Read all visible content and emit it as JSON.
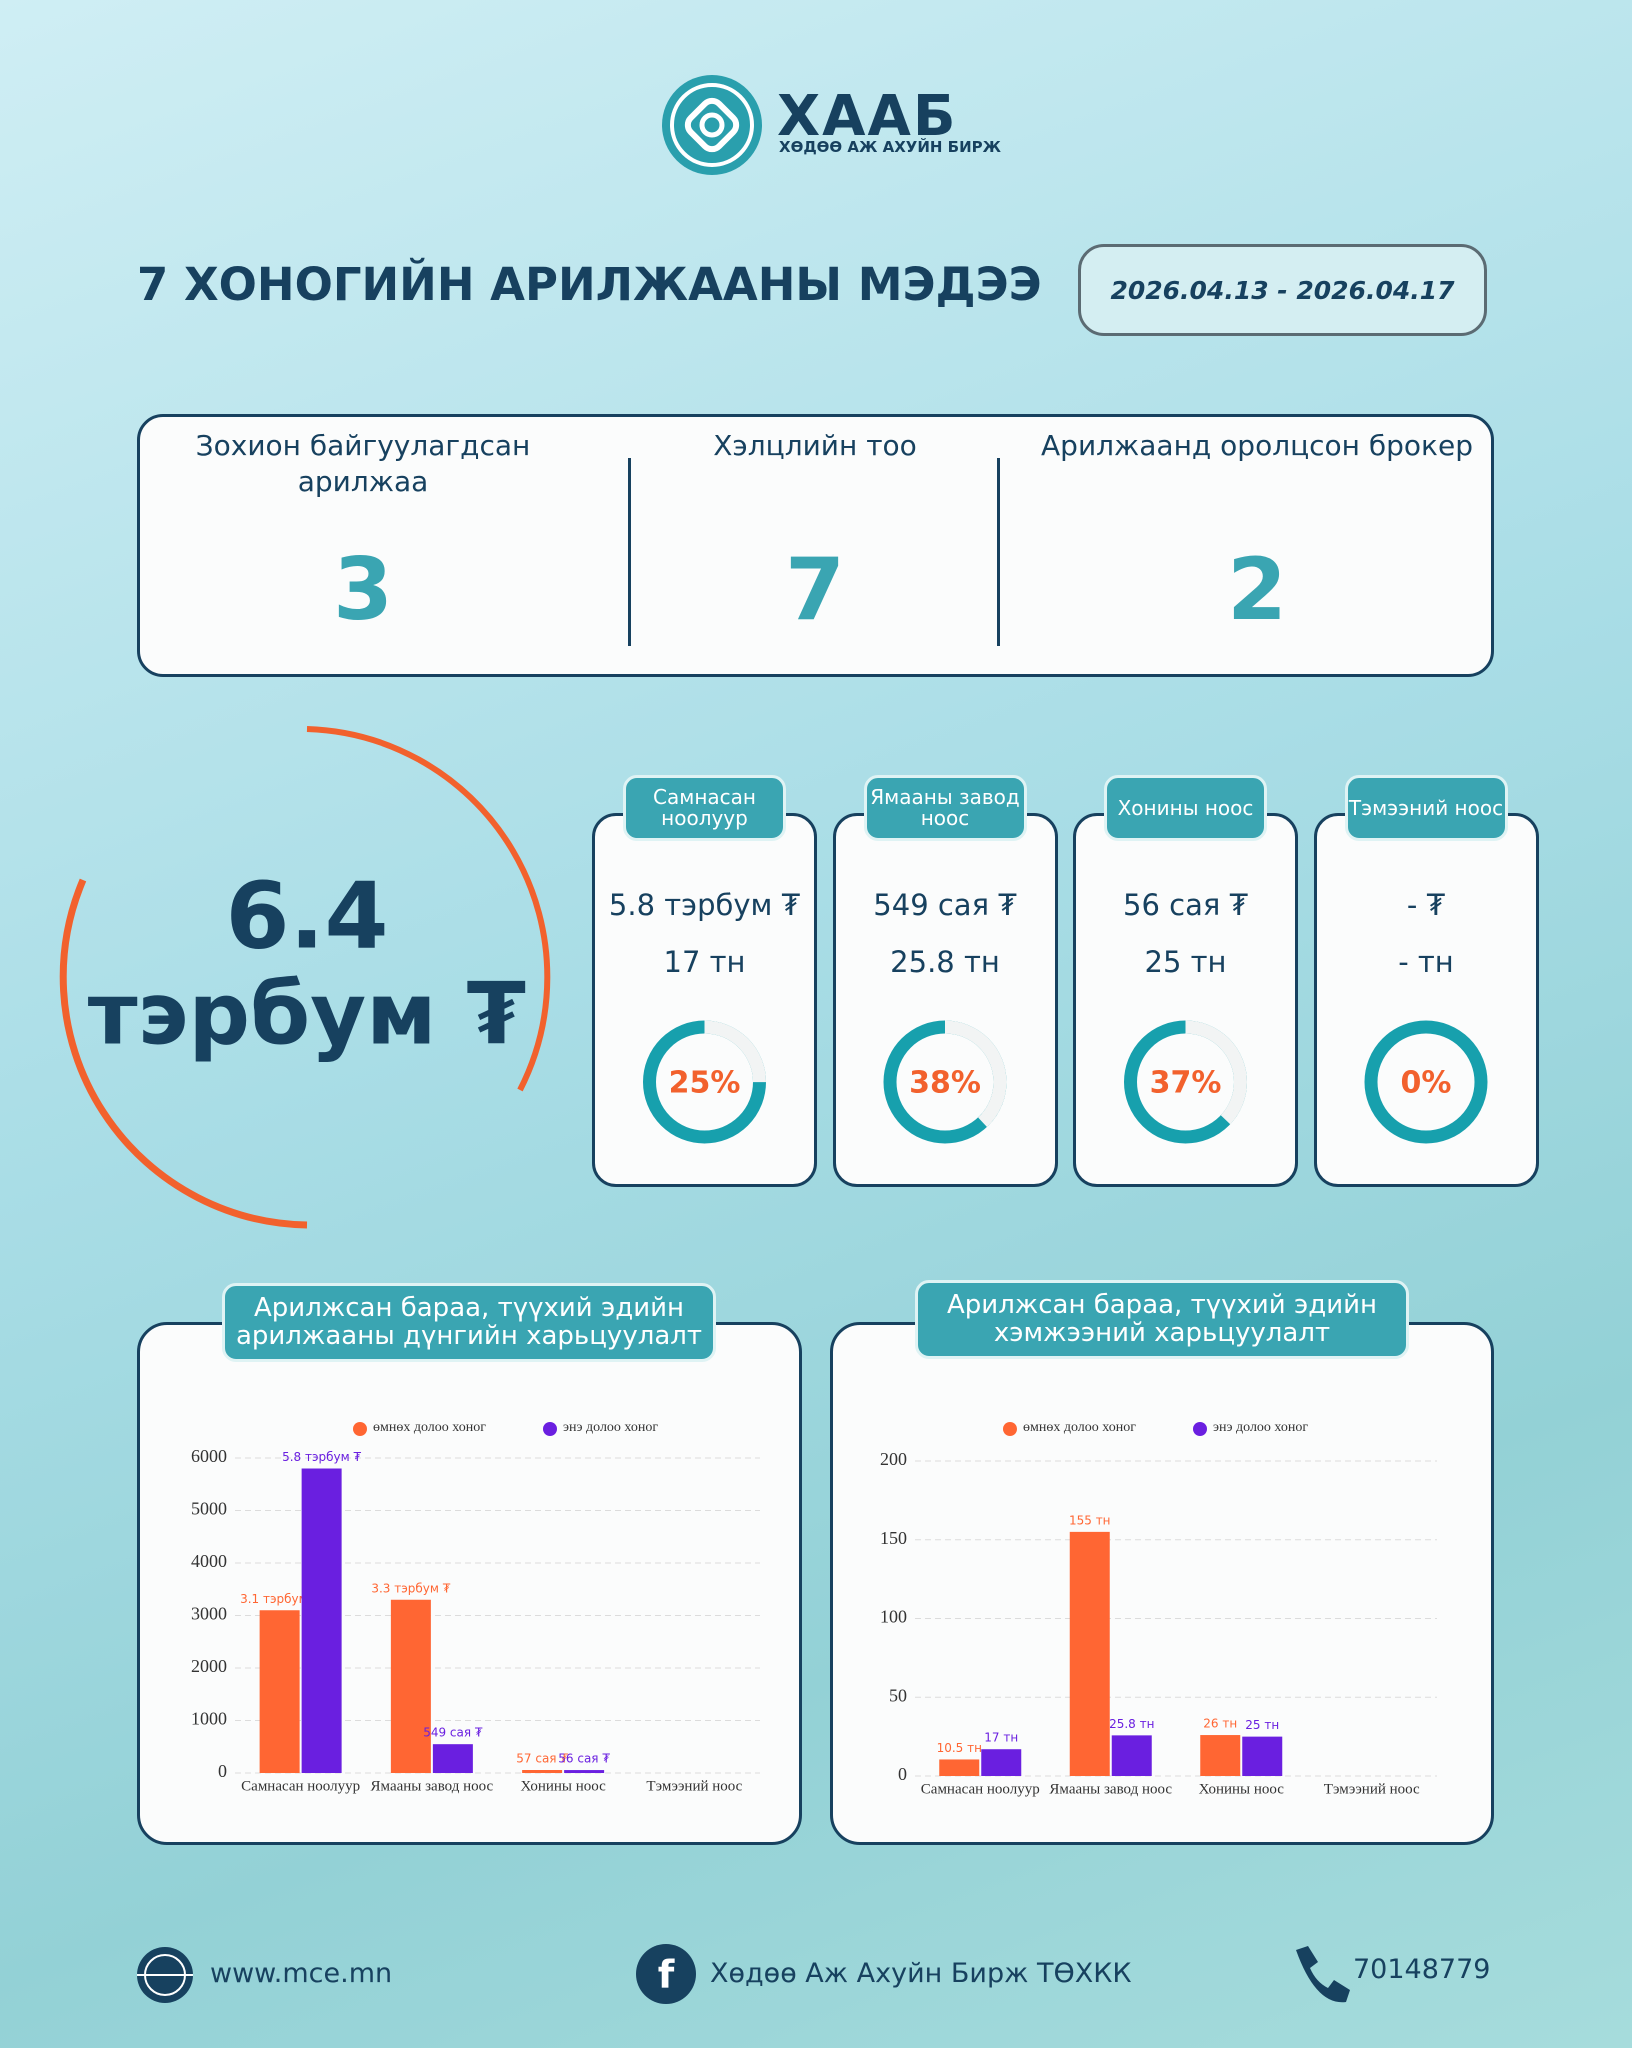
{
  "logo": {
    "name": "ХААБ",
    "subtitle": "ХӨДӨӨ АЖ АХУЙН БИРЖ"
  },
  "header": {
    "title": "7 ХОНОГИЙН АРИЛЖААНЫ МЭДЭЭ",
    "period": "2026.04.13 - 2026.04.17"
  },
  "stats": [
    {
      "label": "Зохион байгуулагдсан арилжаа",
      "value": 3
    },
    {
      "label": "Хэлцлийн тоо",
      "value": 7
    },
    {
      "label": "Арилжаанд оролцсон брокер",
      "value": 2
    }
  ],
  "total": {
    "value": 6.4,
    "unit": "тэрбум ₮"
  },
  "products": [
    {
      "name": "Самнасан ноолуур",
      "amount": "5.8 тэрбум ₮",
      "volume": "17 тн",
      "share": 25,
      "share_label": "25%"
    },
    {
      "name": "Ямааны завод ноос",
      "amount": "549 сая ₮",
      "volume": "25.8 тн",
      "share": 38,
      "share_label": "38%"
    },
    {
      "name": "Хонины ноос",
      "amount": "56 сая ₮",
      "volume": "25 тн",
      "share": 37,
      "share_label": "37%"
    },
    {
      "name": "Тэмээний ноос",
      "amount": "- ₮",
      "volume": "- тн",
      "share": 0,
      "share_label": "0%"
    }
  ],
  "chart_data": [
    {
      "type": "bar",
      "title": "Арилжсан бараа, түүхий эдийн арилжааны дүнгийн харьцуулалт",
      "categories": [
        "Самнасан ноолуур",
        "Ямааны завод ноос",
        "Хонины ноос",
        "Тэмээний ноос"
      ],
      "series": [
        {
          "name": "өмнөх долоо хоног",
          "color": "#ff6633",
          "values": [
            3100,
            3300,
            57,
            null
          ],
          "value_labels": [
            "3.1 тэрбум ₮",
            "3.3 тэрбум ₮",
            "57 сая ₮",
            null
          ]
        },
        {
          "name": "энэ долоо хоног",
          "color": "#6a1fe0",
          "values": [
            5800,
            549,
            56,
            null
          ],
          "value_labels": [
            "5.8 тэрбум ₮",
            "549 сая ₮",
            "56 сая ₮",
            null
          ]
        }
      ],
      "ylim": [
        0,
        6000
      ],
      "yticks": [
        0,
        1000,
        2000,
        3000,
        4000,
        5000,
        6000
      ],
      "grid": true
    },
    {
      "type": "bar",
      "title": "Арилжсан бараа, түүхий эдийн хэмжээний харьцуулалт",
      "categories": [
        "Самнасан ноолуур",
        "Ямааны завод ноос",
        "Хонины ноос",
        "Тэмээний ноос"
      ],
      "series": [
        {
          "name": "өмнөх долоо хоног",
          "color": "#ff6633",
          "values": [
            10.5,
            155,
            26,
            null
          ],
          "value_labels": [
            "10.5 тн",
            "155 тн",
            "26 тн",
            null
          ]
        },
        {
          "name": "энэ долоо хоног",
          "color": "#6a1fe0",
          "values": [
            17,
            25.8,
            25,
            null
          ],
          "value_labels": [
            "17 тн",
            "25.8 тн",
            "25 тн",
            null
          ]
        }
      ],
      "ylim": [
        0,
        200
      ],
      "yticks": [
        0,
        50,
        100,
        150,
        200
      ],
      "grid": true
    }
  ],
  "footer": {
    "website": "www.mce.mn",
    "facebook": "Хөдөө Аж Ахуйн Бирж ТӨХКК",
    "phone": "70148779"
  }
}
